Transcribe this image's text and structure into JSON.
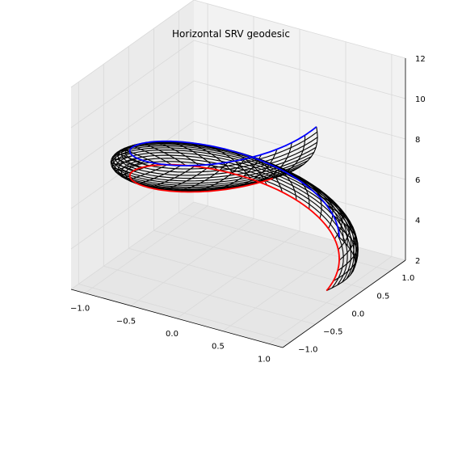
{
  "chart_data": {
    "type": "3d-wireframe",
    "title": "Horizontal SRV geodesic",
    "xlabel": "",
    "ylabel": "",
    "zlabel": "",
    "xlim": [
      -1.15,
      1.15
    ],
    "ylim": [
      -1.15,
      1.3
    ],
    "zlim": [
      2,
      12
    ],
    "x_ticks": [
      "−1.0",
      "−0.5",
      "0.0",
      "0.5",
      "1.0"
    ],
    "x_tick_values": [
      -1.0,
      -0.5,
      0.0,
      0.5,
      1.0
    ],
    "y_ticks": [
      "−1.0",
      "−0.5",
      "0.0",
      "0.5",
      "1.0"
    ],
    "y_tick_values": [
      -1.0,
      -0.5,
      0.0,
      0.5,
      1.0
    ],
    "z_ticks": [
      "2",
      "4",
      "6",
      "8",
      "10",
      "12"
    ],
    "z_tick_values": [
      2,
      4,
      6,
      8,
      10,
      12
    ],
    "grid": true,
    "colors": {
      "start_curve": "#ff0000",
      "end_curve": "#0000ff",
      "mesh": "#000000",
      "pane": "#f2f2f2",
      "grid": "#d9d9d9"
    },
    "series": [
      {
        "color": "#ff0000",
        "role": "start",
        "angle_start_deg": 0,
        "angle_end_deg": 320,
        "z_start": 2.6,
        "z_end": 9.0,
        "radius": 1.0
      },
      {
        "color": "#0000ff",
        "role": "end",
        "angle_start_deg": 30,
        "angle_end_deg": 350,
        "z_start": 4.2,
        "z_end": 11.0,
        "radius": 1.0
      }
    ]
  }
}
